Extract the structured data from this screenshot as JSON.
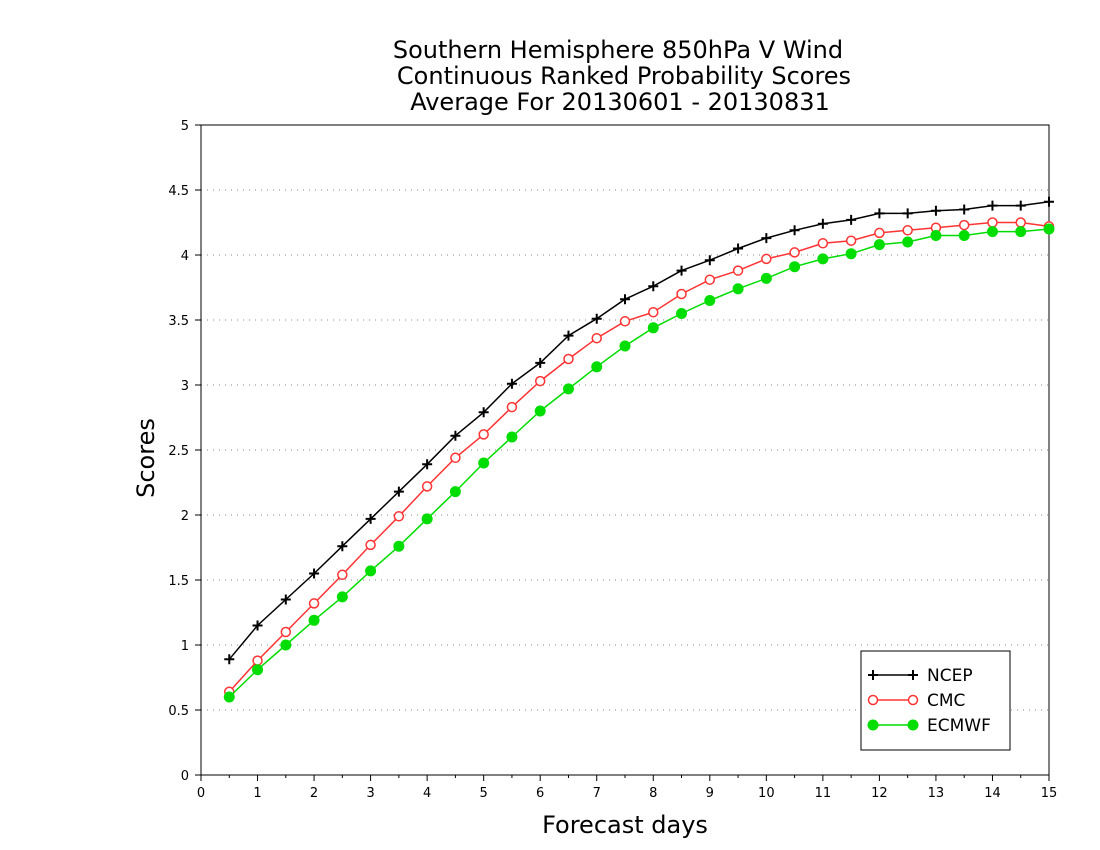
{
  "chart_data": {
    "type": "line",
    "title_lines": [
      "Southern Hemisphere 850hPa V Wind",
      "Continuous Ranked Probability Scores",
      "Average For 20130601 - 20130831"
    ],
    "xlabel": "Forecast days",
    "ylabel": "Scores",
    "xlim": [
      0,
      15
    ],
    "ylim": [
      0,
      5
    ],
    "xticks": [
      0,
      1,
      2,
      3,
      4,
      5,
      6,
      7,
      8,
      9,
      10,
      11,
      12,
      13,
      14,
      15
    ],
    "xtick_labels": [
      "0",
      "1",
      "2",
      "3",
      "4",
      "5",
      "6",
      "7",
      "8",
      "9",
      "10",
      "11",
      "12",
      "13",
      "14",
      "15"
    ],
    "yticks": [
      0,
      0.5,
      1,
      1.5,
      2,
      2.5,
      3,
      3.5,
      4,
      4.5,
      5
    ],
    "ytick_labels": [
      "0",
      "0.5",
      "1",
      "1.5",
      "2",
      "2.5",
      "3",
      "3.5",
      "4",
      "4.5",
      "5"
    ],
    "grid": "horizontal dotted",
    "legend_position": "bottom-right",
    "x": [
      0.5,
      1,
      1.5,
      2,
      2.5,
      3,
      3.5,
      4,
      4.5,
      5,
      5.5,
      6,
      6.5,
      7,
      7.5,
      8,
      8.5,
      9,
      9.5,
      10,
      10.5,
      11,
      11.5,
      12,
      12.5,
      13,
      13.5,
      14,
      14.5,
      15
    ],
    "series": [
      {
        "name": "NCEP",
        "color": "#000000",
        "marker": "plus",
        "values": [
          0.89,
          1.15,
          1.35,
          1.55,
          1.76,
          1.97,
          2.18,
          2.39,
          2.61,
          2.79,
          3.01,
          3.17,
          3.38,
          3.51,
          3.66,
          3.76,
          3.88,
          3.96,
          4.05,
          4.13,
          4.19,
          4.24,
          4.27,
          4.32,
          4.32,
          4.34,
          4.35,
          4.38,
          4.38,
          4.41
        ]
      },
      {
        "name": "CMC",
        "color": "#ff3333",
        "marker": "open-circle",
        "values": [
          0.64,
          0.88,
          1.1,
          1.32,
          1.54,
          1.77,
          1.99,
          2.22,
          2.44,
          2.62,
          2.83,
          3.03,
          3.2,
          3.36,
          3.49,
          3.56,
          3.7,
          3.81,
          3.88,
          3.97,
          4.02,
          4.09,
          4.11,
          4.17,
          4.19,
          4.21,
          4.23,
          4.25,
          4.25,
          4.22
        ]
      },
      {
        "name": "ECMWF",
        "color": "#00dd00",
        "marker": "filled-circle",
        "values": [
          0.6,
          0.81,
          1.0,
          1.19,
          1.37,
          1.57,
          1.76,
          1.97,
          2.18,
          2.4,
          2.6,
          2.8,
          2.97,
          3.14,
          3.3,
          3.44,
          3.55,
          3.65,
          3.74,
          3.82,
          3.91,
          3.97,
          4.01,
          4.08,
          4.1,
          4.15,
          4.15,
          4.18,
          4.18,
          4.2
        ]
      }
    ]
  }
}
